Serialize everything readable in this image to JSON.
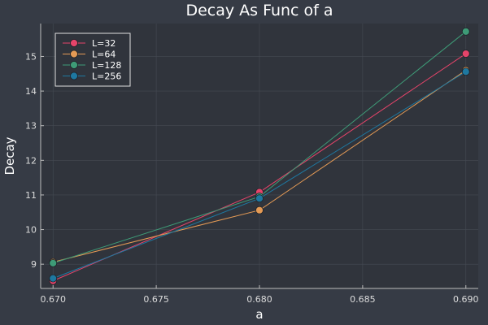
{
  "chart_data": {
    "type": "line",
    "title": "Decay As Func of a",
    "xlabel": "a",
    "ylabel": "Decay",
    "x": [
      0.67,
      0.68,
      0.69
    ],
    "xlim": [
      0.6694,
      0.6906
    ],
    "ylim": [
      8.3,
      15.95
    ],
    "xticks": [
      0.67,
      0.675,
      0.68,
      0.685,
      0.69
    ],
    "xtick_labels": [
      "0.670",
      "0.675",
      "0.680",
      "0.685",
      "0.690"
    ],
    "yticks": [
      9,
      10,
      11,
      12,
      13,
      14,
      15
    ],
    "ytick_labels": [
      "9",
      "10",
      "11",
      "12",
      "13",
      "14",
      "15"
    ],
    "grid": true,
    "legend_position": "top-left",
    "series": [
      {
        "name": "L=32",
        "color": "#e6446a",
        "values": [
          8.52,
          11.08,
          15.08
        ]
      },
      {
        "name": "L=64",
        "color": "#e49a55",
        "values": [
          9.06,
          10.56,
          14.6
        ]
      },
      {
        "name": "L=128",
        "color": "#3e9b77",
        "values": [
          9.03,
          10.95,
          15.72
        ]
      },
      {
        "name": "L=256",
        "color": "#1e78a0",
        "values": [
          8.59,
          10.9,
          14.56
        ]
      }
    ]
  },
  "colors": {
    "background": "#363b45",
    "plot_area": "#30343c",
    "axis": "#bcbcbc",
    "grid": "#454a53",
    "legend_bg": "#30343c",
    "legend_border": "#e0e0e0"
  }
}
